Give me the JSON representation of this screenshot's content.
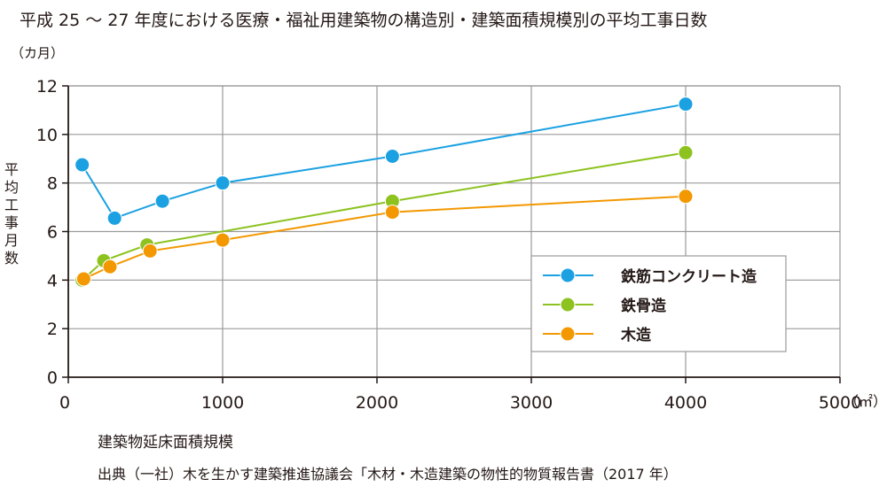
{
  "title": "平成 25 〜 27 年度における医療・福祉用建築物の構造別・建築面積規模別の平均工事日数",
  "source": "出典（一社）木を生かす建築推進協議会「木材・木造建築の物性的物質報告書（2017 年）",
  "chart_data": {
    "type": "line",
    "xlabel": "建築物延床面積規模",
    "x_unit": "（㎡）",
    "ylabel": "平均工事月数",
    "y_unit": "（カ月）",
    "xlim": [
      0,
      5000
    ],
    "ylim": [
      0,
      12
    ],
    "x_ticks": [
      0,
      1000,
      2000,
      3000,
      4000,
      5000
    ],
    "y_ticks": [
      0,
      2,
      4,
      6,
      8,
      10,
      12
    ],
    "grid": true,
    "legend_position": "bottom-right",
    "series": [
      {
        "name": "鉄筋コンクリート造",
        "color": "#1ba1e2",
        "x": [
          90,
          300,
          610,
          1000,
          2100,
          4000
        ],
        "y": [
          8.75,
          6.55,
          7.25,
          8.0,
          9.1,
          11.25
        ]
      },
      {
        "name": "鉄骨造",
        "color": "#8dc21f",
        "x": [
          90,
          230,
          510,
          2100,
          4000
        ],
        "y": [
          4.0,
          4.8,
          5.45,
          7.25,
          9.25
        ]
      },
      {
        "name": "木造",
        "color": "#f39800",
        "x": [
          100,
          270,
          530,
          1000,
          2100,
          4000
        ],
        "y": [
          4.05,
          4.55,
          5.2,
          5.65,
          6.8,
          7.45
        ]
      }
    ]
  }
}
